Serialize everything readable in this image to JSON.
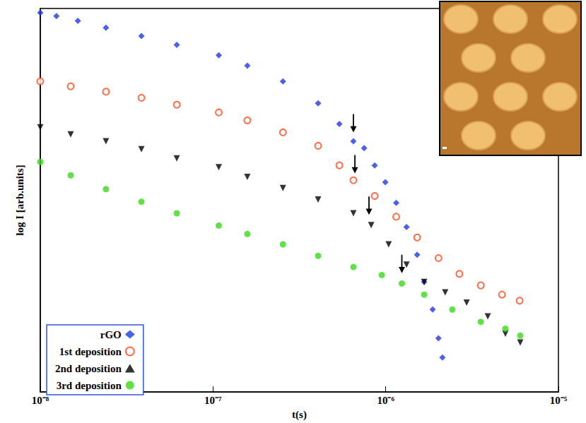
{
  "chart_data": {
    "type": "scatter",
    "x_label": "t(s)",
    "y_label": "log I [arb.units]",
    "log": "x",
    "grid": false,
    "legend": "bottom-left",
    "tick_labels": "x",
    "xlim": [
      1e-08,
      1e-05
    ],
    "xticks": [
      {
        "value": 1e-08,
        "label": "10⁻⁸"
      },
      {
        "value": 1e-07,
        "label": "10⁻⁷"
      },
      {
        "value": 1e-06,
        "label": "10⁻⁶"
      },
      {
        "value": 1e-05,
        "label": "10⁻⁵"
      }
    ],
    "ylim": [
      0,
      100
    ],
    "series": [
      {
        "name": "rGO",
        "color": "#1f3ae6",
        "marker": "diamond",
        "x": [
          1e-08,
          1.24e-08,
          1.65e-08,
          2.4e-08,
          3.85e-08,
          6.17e-08,
          1.08e-07,
          1.58e-07,
          2.54e-07,
          4.06e-07,
          5.39e-07,
          6.5e-07,
          7.5e-07,
          8.63e-07,
          9.95e-07,
          1.15e-06,
          1.32e-06,
          1.52e-06,
          1.67e-06,
          1.87e-06,
          2.02e-06,
          2.13e-06
        ],
        "values": [
          98.9,
          98.0,
          96.8,
          95.0,
          92.8,
          90.5,
          87.8,
          85.1,
          81.0,
          75.3,
          69.9,
          65.4,
          63.6,
          59.1,
          54.7,
          49.3,
          43.0,
          35.8,
          28.7,
          21.5,
          14.0,
          9.0
        ],
        "arrow": {
          "x": 6.5e-07,
          "y": 67.7
        }
      },
      {
        "name": "1st deposition",
        "color": "#ff4a1a",
        "marker": "circle_open",
        "x": [
          1e-08,
          1.5e-08,
          2.4e-08,
          3.85e-08,
          6.17e-08,
          1.08e-07,
          1.58e-07,
          2.54e-07,
          4.06e-07,
          5.39e-07,
          6.5e-07,
          8.63e-07,
          1.15e-06,
          1.52e-06,
          2.02e-06,
          2.67e-06,
          3.55e-06,
          4.71e-06,
          5.96e-06
        ],
        "values": [
          81.0,
          79.7,
          78.3,
          76.7,
          74.9,
          72.9,
          70.8,
          67.7,
          64.2,
          59.1,
          55.2,
          51.1,
          45.7,
          40.3,
          34.9,
          30.8,
          27.8,
          25.4,
          23.8
        ],
        "arrow": {
          "x": 6.63e-07,
          "y": 57.0
        }
      },
      {
        "name": "2nd deposition",
        "color": "#000000",
        "marker": "triangle_down",
        "x": [
          1e-08,
          1.5e-08,
          2.4e-08,
          3.85e-08,
          6.17e-08,
          1.08e-07,
          1.58e-07,
          2.54e-07,
          4.06e-07,
          6.5e-07,
          8.24e-07,
          1.04e-06,
          1.32e-06,
          1.67e-06,
          2.21e-06,
          2.94e-06,
          3.9e-06,
          4.93e-06,
          6.01e-06
        ],
        "values": [
          69.0,
          67.2,
          65.4,
          63.3,
          60.9,
          58.6,
          56.1,
          53.2,
          50.2,
          46.6,
          43.5,
          38.5,
          33.2,
          28.7,
          26.0,
          23.3,
          19.7,
          15.2,
          12.9
        ],
        "arrow": {
          "x": 8e-07,
          "y": 46.2
        }
      },
      {
        "name": "3rd deposition",
        "color": "#3ad81a",
        "marker": "circle",
        "x": [
          1e-08,
          1.5e-08,
          2.4e-08,
          3.85e-08,
          6.17e-08,
          1.08e-07,
          1.58e-07,
          2.54e-07,
          4.06e-07,
          6.5e-07,
          9.49e-07,
          1.24e-06,
          1.67e-06,
          2.43e-06,
          3.55e-06,
          4.93e-06,
          6.01e-06
        ],
        "values": [
          60.0,
          56.5,
          52.9,
          49.6,
          46.6,
          43.4,
          41.2,
          38.5,
          35.5,
          32.6,
          30.5,
          28.3,
          25.4,
          21.5,
          18.3,
          16.5,
          14.7
        ],
        "arrow": {
          "x": 1.24e-06,
          "y": 31.0
        }
      }
    ]
  }
}
